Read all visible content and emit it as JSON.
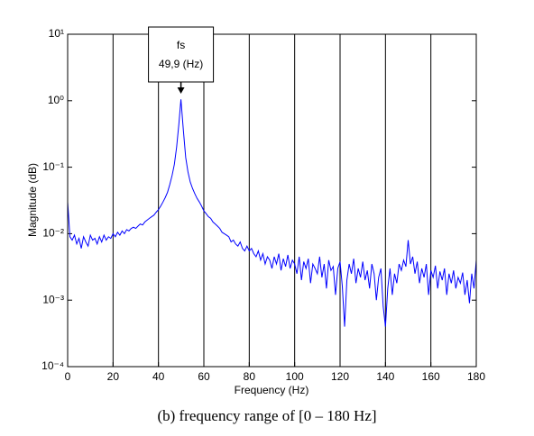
{
  "chart_data": {
    "type": "line",
    "xlabel": "Frequency (Hz)",
    "ylabel": "Magnitude (dB)",
    "caption": "(b) frequency range of [0 – 180 Hz]",
    "annotations": [
      {
        "lines": [
          "fs",
          "49,9 (Hz)"
        ],
        "x": 49.9
      }
    ],
    "color": "#0000ff",
    "x": [
      0,
      1,
      2,
      3,
      4,
      5,
      6,
      7,
      8,
      9,
      10,
      11,
      12,
      13,
      14,
      15,
      16,
      17,
      18,
      19,
      20,
      21,
      22,
      23,
      24,
      25,
      26,
      27,
      28,
      29,
      30,
      31,
      32,
      33,
      34,
      35,
      36,
      37,
      38,
      39,
      40,
      41,
      42,
      43,
      44,
      45,
      46,
      47,
      48,
      49,
      49.9,
      51,
      52,
      53,
      54,
      55,
      56,
      57,
      58,
      59,
      60,
      61,
      62,
      63,
      64,
      65,
      66,
      67,
      68,
      69,
      70,
      71,
      72,
      73,
      74,
      75,
      76,
      77,
      78,
      79,
      80,
      81,
      82,
      83,
      84,
      85,
      86,
      87,
      88,
      89,
      90,
      91,
      92,
      93,
      94,
      95,
      96,
      97,
      98,
      99,
      100,
      101,
      102,
      103,
      104,
      105,
      106,
      107,
      108,
      109,
      110,
      111,
      112,
      113,
      114,
      115,
      116,
      117,
      118,
      119,
      120,
      121,
      122,
      123,
      124,
      125,
      126,
      127,
      128,
      129,
      130,
      131,
      132,
      133,
      134,
      135,
      136,
      137,
      138,
      139,
      140,
      141,
      142,
      143,
      144,
      145,
      146,
      147,
      148,
      149,
      150,
      151,
      152,
      153,
      154,
      155,
      156,
      157,
      158,
      159,
      160,
      161,
      162,
      163,
      164,
      165,
      166,
      167,
      168,
      169,
      170,
      171,
      172,
      173,
      174,
      175,
      176,
      177,
      178,
      179,
      180
    ],
    "values": [
      0.03,
      0.009,
      0.008,
      0.0095,
      0.007,
      0.0085,
      0.006,
      0.009,
      0.0075,
      0.0065,
      0.0095,
      0.008,
      0.0085,
      0.007,
      0.009,
      0.0075,
      0.0095,
      0.008,
      0.009,
      0.0085,
      0.01,
      0.009,
      0.0105,
      0.0095,
      0.011,
      0.01,
      0.0115,
      0.011,
      0.012,
      0.0125,
      0.012,
      0.013,
      0.014,
      0.0135,
      0.015,
      0.016,
      0.017,
      0.018,
      0.019,
      0.021,
      0.023,
      0.026,
      0.03,
      0.035,
      0.042,
      0.055,
      0.075,
      0.11,
      0.2,
      0.45,
      1.05,
      0.35,
      0.14,
      0.085,
      0.06,
      0.048,
      0.04,
      0.034,
      0.03,
      0.026,
      0.022,
      0.02,
      0.018,
      0.017,
      0.015,
      0.014,
      0.013,
      0.012,
      0.0105,
      0.01,
      0.0095,
      0.009,
      0.0075,
      0.008,
      0.007,
      0.0065,
      0.0075,
      0.006,
      0.0055,
      0.0065,
      0.0055,
      0.006,
      0.005,
      0.0045,
      0.0055,
      0.004,
      0.005,
      0.0035,
      0.0045,
      0.004,
      0.003,
      0.0045,
      0.0035,
      0.005,
      0.0028,
      0.0042,
      0.0032,
      0.0048,
      0.003,
      0.004,
      0.0035,
      0.0025,
      0.0045,
      0.002,
      0.0038,
      0.003,
      0.0042,
      0.0018,
      0.0035,
      0.003,
      0.0025,
      0.0045,
      0.0022,
      0.0035,
      0.0015,
      0.004,
      0.0028,
      0.0032,
      0.0012,
      0.003,
      0.0038,
      0.0016,
      0.0004,
      0.002,
      0.0035,
      0.0025,
      0.0042,
      0.0018,
      0.003,
      0.0022,
      0.0038,
      0.002,
      0.0028,
      0.0015,
      0.0035,
      0.0025,
      0.001,
      0.0022,
      0.003,
      0.0008,
      0.0004,
      0.0015,
      0.003,
      0.0012,
      0.0025,
      0.0018,
      0.0035,
      0.0028,
      0.004,
      0.0032,
      0.008,
      0.0035,
      0.0045,
      0.0025,
      0.0038,
      0.0018,
      0.003,
      0.0022,
      0.0035,
      0.0012,
      0.0028,
      0.0022,
      0.0033,
      0.0015,
      0.0027,
      0.002,
      0.003,
      0.0012,
      0.0025,
      0.0018,
      0.0028,
      0.0015,
      0.0022,
      0.0018,
      0.0026,
      0.0012,
      0.002,
      0.0009,
      0.0025,
      0.0015,
      0.004
    ],
    "xlim": [
      0,
      180
    ],
    "xticks": [
      0,
      20,
      40,
      60,
      80,
      100,
      120,
      140,
      160,
      180
    ],
    "ylim": [
      0.0001,
      10
    ],
    "yticks": [
      {
        "value": 0.0001,
        "label": "10⁻⁴"
      },
      {
        "value": 0.001,
        "label": "10⁻³"
      },
      {
        "value": 0.01,
        "label": "10⁻²"
      },
      {
        "value": 0.1,
        "label": "10⁻¹"
      },
      {
        "value": 1,
        "label": "10⁰"
      },
      {
        "value": 10,
        "label": "10¹"
      }
    ],
    "ylog": true,
    "grid": "x"
  }
}
